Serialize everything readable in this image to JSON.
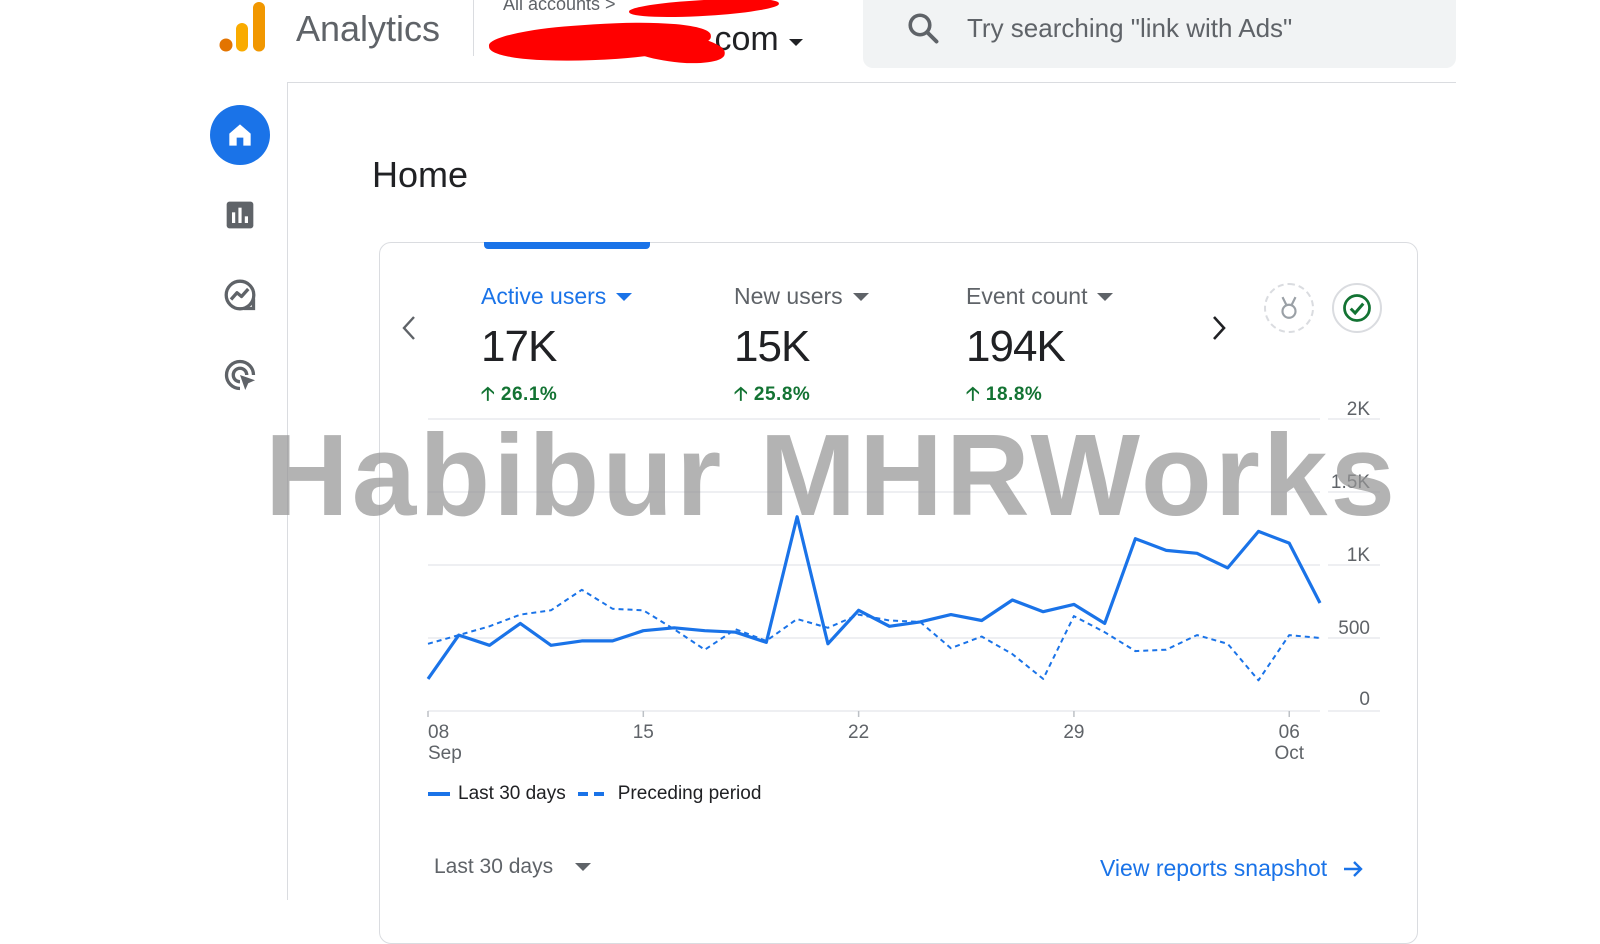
{
  "header": {
    "app_name": "Analytics",
    "breadcrumb": "All accounts >",
    "property_name": ".com",
    "search_placeholder": "Try searching \"link with Ads\""
  },
  "nav": {
    "items": [
      {
        "name": "home",
        "icon": "home-icon",
        "active": true
      },
      {
        "name": "reports",
        "icon": "bar-chart-icon",
        "active": false
      },
      {
        "name": "explore",
        "icon": "explore-icon",
        "active": false
      },
      {
        "name": "advertising",
        "icon": "target-cursor-icon",
        "active": false
      }
    ]
  },
  "page": {
    "title": "Home"
  },
  "card": {
    "metrics": [
      {
        "label": "Active users",
        "value": "17K",
        "change": "26.1%",
        "active": true
      },
      {
        "label": "New users",
        "value": "15K",
        "change": "25.8%",
        "active": false
      },
      {
        "label": "Event count",
        "value": "194K",
        "change": "18.8%",
        "active": false
      }
    ],
    "legend": {
      "current": "Last 30 days",
      "previous": "Preceding period"
    },
    "date_range": "Last 30 days",
    "snapshot_link": "View reports snapshot"
  },
  "watermark": "Habibur MHRWorks",
  "colors": {
    "accent": "#1a73e8",
    "positive": "#137333",
    "logo_orange": "#f9ab00",
    "logo_dark_orange": "#e37400"
  },
  "chart_data": {
    "type": "line",
    "x_tick_labels": [
      [
        "08",
        "Sep"
      ],
      [
        "15",
        ""
      ],
      [
        "22",
        ""
      ],
      [
        "29",
        ""
      ],
      [
        "06",
        "Oct"
      ]
    ],
    "x_tick_days": [
      0,
      7,
      14,
      21,
      28
    ],
    "y_tick_labels": [
      "2K",
      "1.5K",
      "1K",
      "500",
      "0"
    ],
    "ylim": [
      0,
      2000
    ],
    "grid": true,
    "legend_position": "bottom-left",
    "series": [
      {
        "name": "Last 30 days",
        "style": "solid",
        "x": [
          0,
          1,
          2,
          3,
          4,
          5,
          6,
          7,
          8,
          9,
          10,
          11,
          12,
          13,
          14,
          15,
          16,
          17,
          18,
          19,
          20,
          21,
          22,
          23,
          24,
          25,
          26,
          27,
          28,
          29
        ],
        "values": [
          220,
          520,
          450,
          600,
          450,
          480,
          480,
          550,
          570,
          550,
          540,
          470,
          1330,
          460,
          690,
          580,
          610,
          660,
          620,
          760,
          680,
          730,
          600,
          1180,
          1100,
          1080,
          980,
          1230,
          1150,
          740
        ]
      },
      {
        "name": "Preceding period",
        "style": "dashed",
        "x": [
          0,
          1,
          2,
          3,
          4,
          5,
          6,
          7,
          8,
          9,
          10,
          11,
          12,
          13,
          14,
          15,
          16,
          17,
          18,
          19,
          20,
          21,
          22,
          23,
          24,
          25,
          26,
          27,
          28,
          29
        ],
        "values": [
          460,
          520,
          580,
          660,
          690,
          830,
          700,
          690,
          560,
          420,
          560,
          480,
          630,
          570,
          660,
          620,
          610,
          430,
          510,
          390,
          220,
          650,
          540,
          410,
          420,
          520,
          460,
          210,
          520,
          500
        ]
      }
    ]
  }
}
